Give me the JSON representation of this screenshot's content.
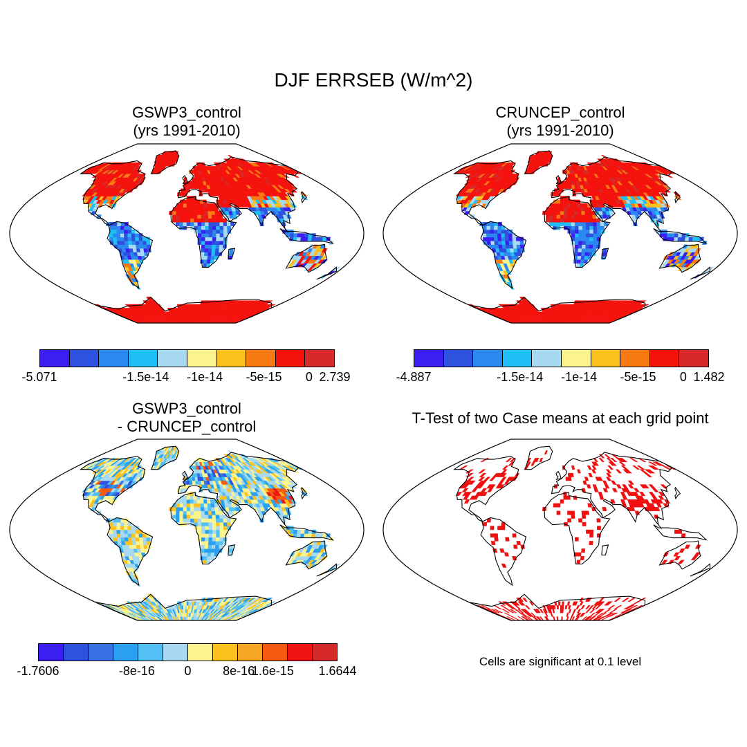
{
  "figure": {
    "title": "DJF ERRSEB (W/m^2)"
  },
  "panels": [
    {
      "title_line1": "GSWP3_control",
      "title_line2": "(yrs 1991-2010)",
      "colorbar": {
        "colors": [
          "#3a1ef2",
          "#2e52e0",
          "#2a88f0",
          "#1fbff5",
          "#a7d9f2",
          "#fbf48e",
          "#fbc21f",
          "#f77a12",
          "#f5120c",
          "#d62a2a"
        ],
        "labels": [
          "-5.071",
          "-1.5e-14",
          "-1e-14",
          "-5e-15",
          "0",
          "2.739"
        ]
      },
      "field_pattern": "control-gswp3"
    },
    {
      "title_line1": "CRUNCEP_control",
      "title_line2": "(yrs 1991-2010)",
      "colorbar": {
        "colors": [
          "#3a1ef2",
          "#2e52e0",
          "#2a88f0",
          "#1fbff5",
          "#a7d9f2",
          "#fbf48e",
          "#fbc21f",
          "#f77a12",
          "#f5120c",
          "#d62a2a"
        ],
        "labels": [
          "-4.887",
          "-1.5e-14",
          "-1e-14",
          "-5e-15",
          "0",
          "1.482"
        ]
      },
      "field_pattern": "control-cruncep"
    },
    {
      "title_line1": "GSWP3_control",
      "title_line2": "- CRUNCEP_control",
      "colorbar": {
        "colors": [
          "#3a1ef2",
          "#2e52e0",
          "#3a72e6",
          "#2aa0f0",
          "#52c0f2",
          "#a7d9f2",
          "#fbf48e",
          "#fbc21f",
          "#f5a623",
          "#f55a12",
          "#f01414",
          "#d62a2a"
        ],
        "labels": [
          "-1.7606",
          "-8e-16",
          "0",
          "8e-16",
          "1.6e-15",
          "1.6644"
        ]
      },
      "field_pattern": "difference"
    },
    {
      "title_line1": "T-Test of two Case means at each grid point",
      "note": "Cells are significant at 0.1 level",
      "field_pattern": "ttest"
    }
  ]
}
